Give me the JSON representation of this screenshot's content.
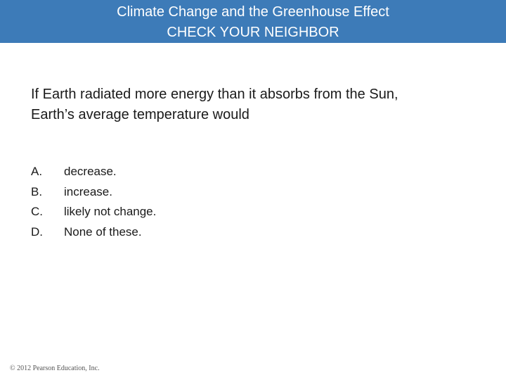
{
  "header": {
    "title_line1": "Climate Change and the Greenhouse Effect",
    "title_line2": "CHECK YOUR NEIGHBOR"
  },
  "question": {
    "line1": "If Earth radiated more energy than it absorbs from the Sun,",
    "line2": "Earth’s average temperature would"
  },
  "options": [
    {
      "letter": "A.",
      "text": "decrease."
    },
    {
      "letter": "B.",
      "text": "increase."
    },
    {
      "letter": "C.",
      "text": "likely not change."
    },
    {
      "letter": "D.",
      "text": "None of these."
    }
  ],
  "footer": {
    "copyright": "© 2012 Pearson Education, Inc."
  },
  "colors": {
    "header_background": "#3d7bb8",
    "header_text": "#ffffff",
    "body_text": "#1a1a1a"
  }
}
